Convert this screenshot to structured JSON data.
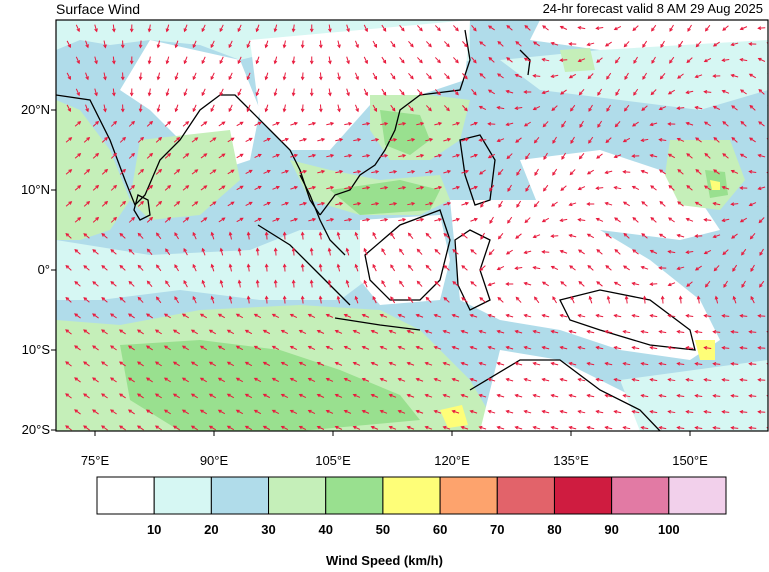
{
  "title": "Surface Wind",
  "subtitle": "24-hr forecast valid 8 AM 29 Aug 2025",
  "lat_labels": [
    {
      "lat": 20,
      "text": "20°N"
    },
    {
      "lat": 10,
      "text": "10°N"
    },
    {
      "lat": 0,
      "text": "0°"
    },
    {
      "lat": -10,
      "text": "10°S"
    },
    {
      "lat": -20,
      "text": "20°S"
    }
  ],
  "lon_labels": [
    {
      "lon": 75,
      "text": "75°E"
    },
    {
      "lon": 90,
      "text": "90°E"
    },
    {
      "lon": 105,
      "text": "105°E"
    },
    {
      "lon": 120,
      "text": "120°E"
    },
    {
      "lon": 135,
      "text": "135°E"
    },
    {
      "lon": 150,
      "text": "150°E"
    }
  ],
  "legend": {
    "title": "Wind Speed (km/h)",
    "colors": [
      "#ffffff",
      "#d6f7f3",
      "#b0dcea",
      "#c5efb9",
      "#99e08f",
      "#fefe78",
      "#fda36d",
      "#e2636a",
      "#cf1c40",
      "#e27aa4",
      "#f2d0eb"
    ],
    "ticks": [
      "10",
      "20",
      "30",
      "40",
      "50",
      "60",
      "70",
      "80",
      "90",
      "100"
    ]
  },
  "colors": {
    "arrow": "#e8193c",
    "coast": "#000000"
  }
}
